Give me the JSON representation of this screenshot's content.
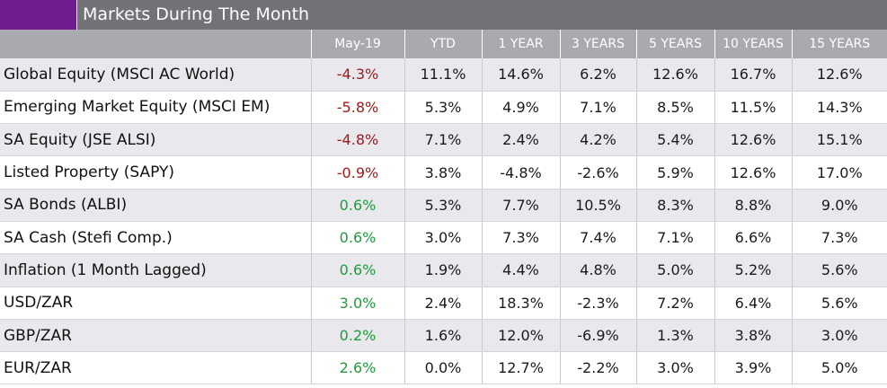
{
  "title": "Markets During The Month",
  "colors": {
    "accent": "#6f1c8f",
    "title_bar": "#727279",
    "header_row": "#a9a9b0",
    "negative": "#a01a1a",
    "positive": "#1e9c3a",
    "row_shade": "#e8e8ed"
  },
  "columns": [
    "",
    "May-19",
    "YTD",
    "1 YEAR",
    "3 YEARS",
    "5 YEARS",
    "10 YEARS",
    "15 YEARS"
  ],
  "rows": [
    {
      "name": "Global Equity (MSCI AC World)",
      "sign": "neg",
      "values": [
        "-4.3%",
        "11.1%",
        "14.6%",
        "6.2%",
        "12.6%",
        "16.7%",
        "12.6%"
      ]
    },
    {
      "name": "Emerging Market Equity (MSCI EM)",
      "sign": "neg",
      "values": [
        "-5.8%",
        "5.3%",
        "4.9%",
        "7.1%",
        "8.5%",
        "11.5%",
        "14.3%"
      ]
    },
    {
      "name": "SA Equity (JSE ALSI)",
      "sign": "neg",
      "values": [
        "-4.8%",
        "7.1%",
        "2.4%",
        "4.2%",
        "5.4%",
        "12.6%",
        "15.1%"
      ]
    },
    {
      "name": "Listed Property (SAPY)",
      "sign": "neg",
      "values": [
        "-0.9%",
        "3.8%",
        "-4.8%",
        "-2.6%",
        "5.9%",
        "12.6%",
        "17.0%"
      ]
    },
    {
      "name": "SA Bonds (ALBI)",
      "sign": "pos",
      "values": [
        "0.6%",
        "5.3%",
        "7.7%",
        "10.5%",
        "8.3%",
        "8.8%",
        "9.0%"
      ]
    },
    {
      "name": "SA Cash (Stefi Comp.)",
      "sign": "pos",
      "values": [
        "0.6%",
        "3.0%",
        "7.3%",
        "7.4%",
        "7.1%",
        "6.6%",
        "7.3%"
      ]
    },
    {
      "name": "Inflation (1 Month Lagged)",
      "sign": "pos",
      "values": [
        "0.6%",
        "1.9%",
        "4.4%",
        "4.8%",
        "5.0%",
        "5.2%",
        "5.6%"
      ]
    },
    {
      "name": "USD/ZAR",
      "sign": "pos",
      "values": [
        "3.0%",
        "2.4%",
        "18.3%",
        "-2.3%",
        "7.2%",
        "6.4%",
        "5.6%"
      ]
    },
    {
      "name": "GBP/ZAR",
      "sign": "pos",
      "values": [
        "0.2%",
        "1.6%",
        "12.0%",
        "-6.9%",
        "1.3%",
        "3.8%",
        "3.0%"
      ]
    },
    {
      "name": "EUR/ZAR",
      "sign": "pos",
      "values": [
        "2.6%",
        "0.0%",
        "12.7%",
        "-2.2%",
        "3.0%",
        "3.9%",
        "5.0%"
      ]
    }
  ]
}
